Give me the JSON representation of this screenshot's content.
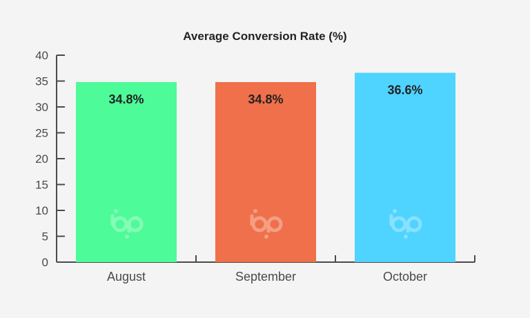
{
  "chart_data": {
    "type": "bar",
    "title": "Average Conversion Rate (%)",
    "xlabel": "",
    "ylabel": "",
    "categories": [
      "August",
      "September",
      "October"
    ],
    "values": [
      34.8,
      34.8,
      36.6
    ],
    "data_labels": [
      "34.8%",
      "34.8%",
      "36.6%"
    ],
    "colors": [
      "#4dfb98",
      "#ef704a",
      "#4fd3ff"
    ],
    "ylim": [
      0,
      40
    ],
    "yticks": [
      0,
      5,
      10,
      15,
      20,
      25,
      30,
      35,
      40
    ],
    "grid": false,
    "legend": "none"
  }
}
